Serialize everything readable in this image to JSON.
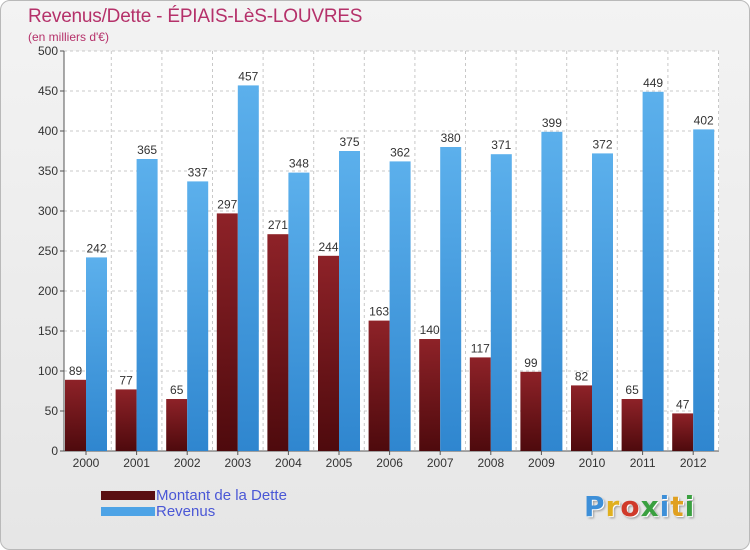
{
  "header": {
    "title": "Revenus/Dette - ÉPIAIS-LèS-LOUVRES",
    "subtitle": "(en milliers d'€)"
  },
  "legend": {
    "items": [
      {
        "label": "Montant de la Dette",
        "color": "#7a1a1f"
      },
      {
        "label": "Revenus",
        "color": "#4da3e6"
      }
    ]
  },
  "logo": {
    "text": "Proxiti"
  },
  "chart_data": {
    "type": "bar",
    "title": "Revenus/Dette - ÉPIAIS-LèS-LOUVRES",
    "subtitle": "(en milliers d'€)",
    "categories": [
      "2000",
      "2001",
      "2002",
      "2003",
      "2004",
      "2005",
      "2006",
      "2007",
      "2008",
      "2009",
      "2010",
      "2011",
      "2012"
    ],
    "series": [
      {
        "name": "Montant de la Dette",
        "color": "#7a1a1f",
        "values": [
          89,
          77,
          65,
          297,
          271,
          244,
          163,
          140,
          117,
          99,
          82,
          65,
          47
        ]
      },
      {
        "name": "Revenus",
        "color": "#4da3e6",
        "values": [
          242,
          365,
          337,
          457,
          348,
          375,
          362,
          380,
          371,
          399,
          372,
          449,
          402
        ]
      }
    ],
    "ylim": [
      0,
      500
    ],
    "yticks": [
      0,
      50,
      100,
      150,
      200,
      250,
      300,
      350,
      400,
      450,
      500
    ],
    "grid": true,
    "legend_position": "bottom-left"
  }
}
